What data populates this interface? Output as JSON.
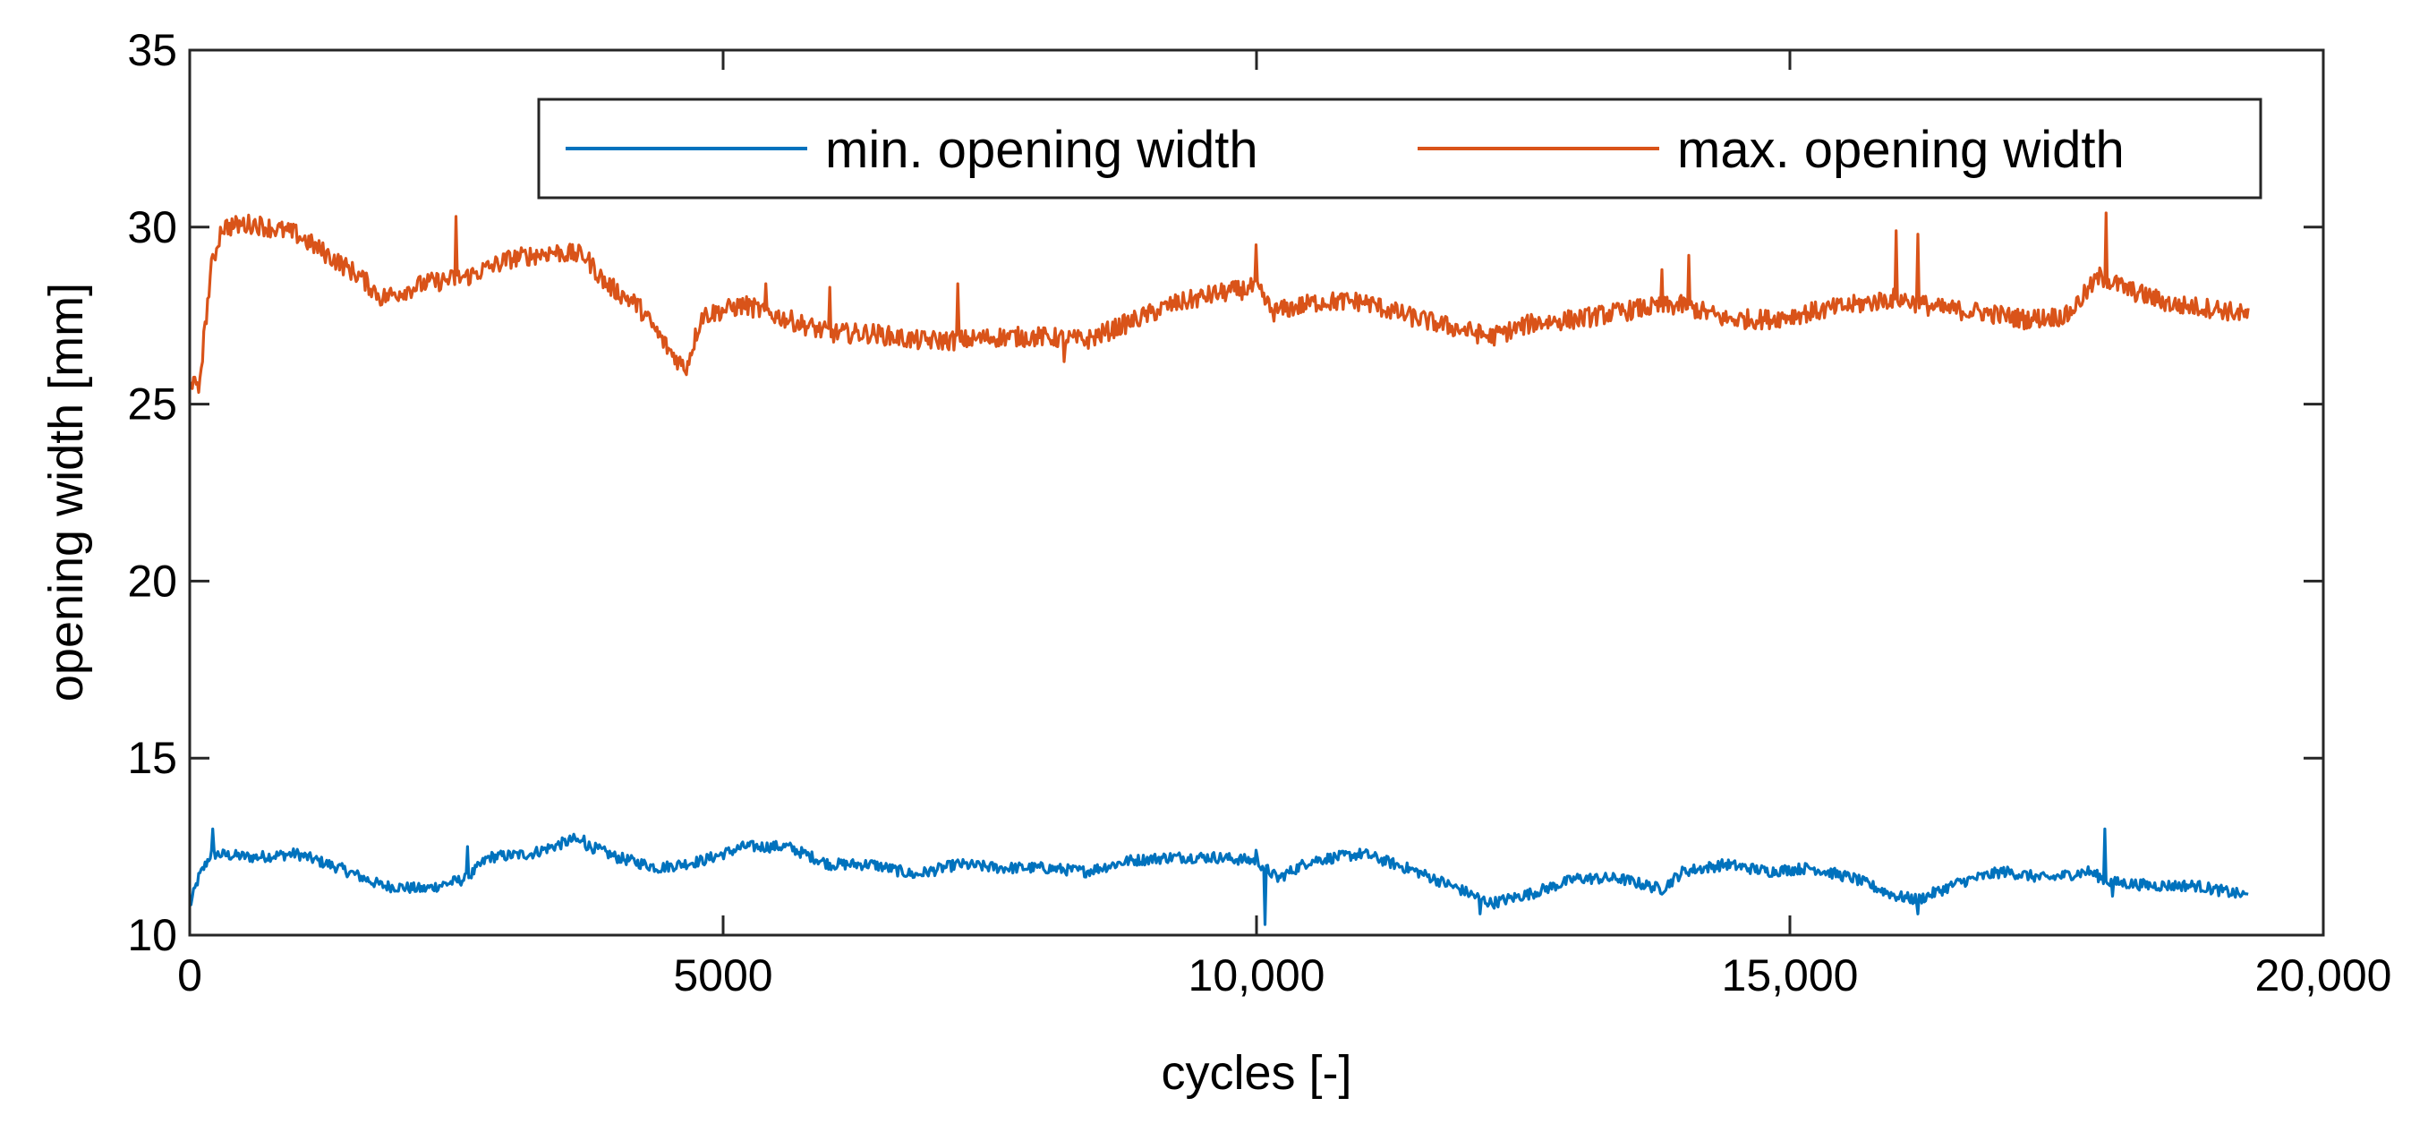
{
  "chart_data": {
    "type": "line",
    "title": "",
    "xlabel": "cycles [-]",
    "ylabel": "opening width [mm]",
    "xlim": [
      0,
      20000
    ],
    "ylim": [
      10,
      35
    ],
    "grid": false,
    "legend_position": "top-right",
    "x_ticks": [
      {
        "value": 0,
        "label": "0"
      },
      {
        "value": 5000,
        "label": "5000"
      },
      {
        "value": 10000,
        "label": "10,000"
      },
      {
        "value": 15000,
        "label": "15,000"
      },
      {
        "value": 20000,
        "label": "20,000"
      }
    ],
    "y_ticks": [
      {
        "value": 10,
        "label": "10"
      },
      {
        "value": 15,
        "label": "15"
      },
      {
        "value": 20,
        "label": "20"
      },
      {
        "value": 25,
        "label": "25"
      },
      {
        "value": 30,
        "label": "30"
      },
      {
        "value": 35,
        "label": "35"
      }
    ],
    "series": [
      {
        "name": "min. opening width",
        "color": "#0072BD",
        "anchors": [
          [
            0,
            10.8
          ],
          [
            80,
            11.6
          ],
          [
            200,
            12.3
          ],
          [
            600,
            12.2
          ],
          [
            1000,
            12.3
          ],
          [
            1400,
            11.9
          ],
          [
            1800,
            11.4
          ],
          [
            2200,
            11.3
          ],
          [
            2600,
            11.6
          ],
          [
            2800,
            12.2
          ],
          [
            3200,
            12.3
          ],
          [
            3600,
            12.7
          ],
          [
            4000,
            12.2
          ],
          [
            4400,
            11.9
          ],
          [
            4800,
            12.1
          ],
          [
            5200,
            12.5
          ],
          [
            5600,
            12.5
          ],
          [
            6000,
            12.0
          ],
          [
            6400,
            12.0
          ],
          [
            6800,
            11.7
          ],
          [
            7200,
            12.0
          ],
          [
            7600,
            11.9
          ],
          [
            8000,
            11.9
          ],
          [
            8400,
            11.8
          ],
          [
            8800,
            12.1
          ],
          [
            9200,
            12.2
          ],
          [
            9600,
            12.2
          ],
          [
            10000,
            12.1
          ],
          [
            10200,
            11.6
          ],
          [
            10500,
            12.1
          ],
          [
            11000,
            12.3
          ],
          [
            11500,
            11.8
          ],
          [
            11900,
            11.3
          ],
          [
            12200,
            10.9
          ],
          [
            12600,
            11.2
          ],
          [
            13000,
            11.6
          ],
          [
            13400,
            11.6
          ],
          [
            13800,
            11.3
          ],
          [
            14000,
            11.8
          ],
          [
            14400,
            12.0
          ],
          [
            14800,
            11.8
          ],
          [
            15200,
            11.9
          ],
          [
            15600,
            11.6
          ],
          [
            16000,
            11.1
          ],
          [
            16200,
            11.0
          ],
          [
            16600,
            11.5
          ],
          [
            17000,
            11.8
          ],
          [
            17400,
            11.6
          ],
          [
            17800,
            11.8
          ],
          [
            18000,
            11.5
          ],
          [
            18400,
            11.4
          ],
          [
            18800,
            11.4
          ],
          [
            19300,
            11.1
          ]
        ],
        "noise": 0.16,
        "spikes": [
          [
            220,
            13.0
          ],
          [
            2600,
            12.5
          ],
          [
            3700,
            12.8
          ],
          [
            10000,
            12.4
          ],
          [
            10080,
            10.3
          ],
          [
            12100,
            10.6
          ],
          [
            13650,
            12.4
          ],
          [
            16200,
            10.6
          ],
          [
            17950,
            13.0
          ],
          [
            18020,
            11.1
          ]
        ]
      },
      {
        "name": "max. opening width",
        "color": "#D95319",
        "anchors": [
          [
            0,
            25.8
          ],
          [
            80,
            25.3
          ],
          [
            200,
            28.8
          ],
          [
            300,
            30.0
          ],
          [
            600,
            30.1
          ],
          [
            1000,
            29.8
          ],
          [
            1300,
            29.2
          ],
          [
            1600,
            28.6
          ],
          [
            1800,
            28.0
          ],
          [
            2200,
            28.4
          ],
          [
            2600,
            28.6
          ],
          [
            3000,
            29.1
          ],
          [
            3400,
            29.3
          ],
          [
            3700,
            29.2
          ],
          [
            3900,
            28.4
          ],
          [
            4200,
            27.8
          ],
          [
            4500,
            26.5
          ],
          [
            4650,
            26.0
          ],
          [
            4800,
            27.5
          ],
          [
            5200,
            27.8
          ],
          [
            5600,
            27.4
          ],
          [
            6000,
            27.0
          ],
          [
            6400,
            27.0
          ],
          [
            6800,
            26.8
          ],
          [
            7200,
            26.8
          ],
          [
            7600,
            26.9
          ],
          [
            8000,
            26.9
          ],
          [
            8400,
            26.8
          ],
          [
            8800,
            27.3
          ],
          [
            9200,
            27.8
          ],
          [
            9600,
            28.1
          ],
          [
            10000,
            28.3
          ],
          [
            10150,
            27.6
          ],
          [
            10600,
            27.9
          ],
          [
            11000,
            27.9
          ],
          [
            11400,
            27.5
          ],
          [
            11800,
            27.2
          ],
          [
            12200,
            26.9
          ],
          [
            12600,
            27.3
          ],
          [
            13000,
            27.4
          ],
          [
            13600,
            27.7
          ],
          [
            14000,
            27.8
          ],
          [
            14400,
            27.4
          ],
          [
            14800,
            27.4
          ],
          [
            15200,
            27.6
          ],
          [
            15600,
            27.8
          ],
          [
            16000,
            28.0
          ],
          [
            16400,
            27.7
          ],
          [
            16800,
            27.6
          ],
          [
            17200,
            27.4
          ],
          [
            17600,
            27.5
          ],
          [
            17900,
            28.6
          ],
          [
            18200,
            28.2
          ],
          [
            18600,
            27.8
          ],
          [
            19000,
            27.7
          ],
          [
            19300,
            27.5
          ]
        ],
        "noise": 0.28,
        "spikes": [
          [
            2500,
            30.3
          ],
          [
            4650,
            25.5
          ],
          [
            5400,
            28.4
          ],
          [
            6000,
            28.3
          ],
          [
            7200,
            28.4
          ],
          [
            8200,
            26.2
          ],
          [
            10000,
            29.5
          ],
          [
            13800,
            28.8
          ],
          [
            14050,
            29.2
          ],
          [
            16000,
            29.9
          ],
          [
            16200,
            29.8
          ],
          [
            17960,
            30.4
          ]
        ]
      }
    ]
  }
}
